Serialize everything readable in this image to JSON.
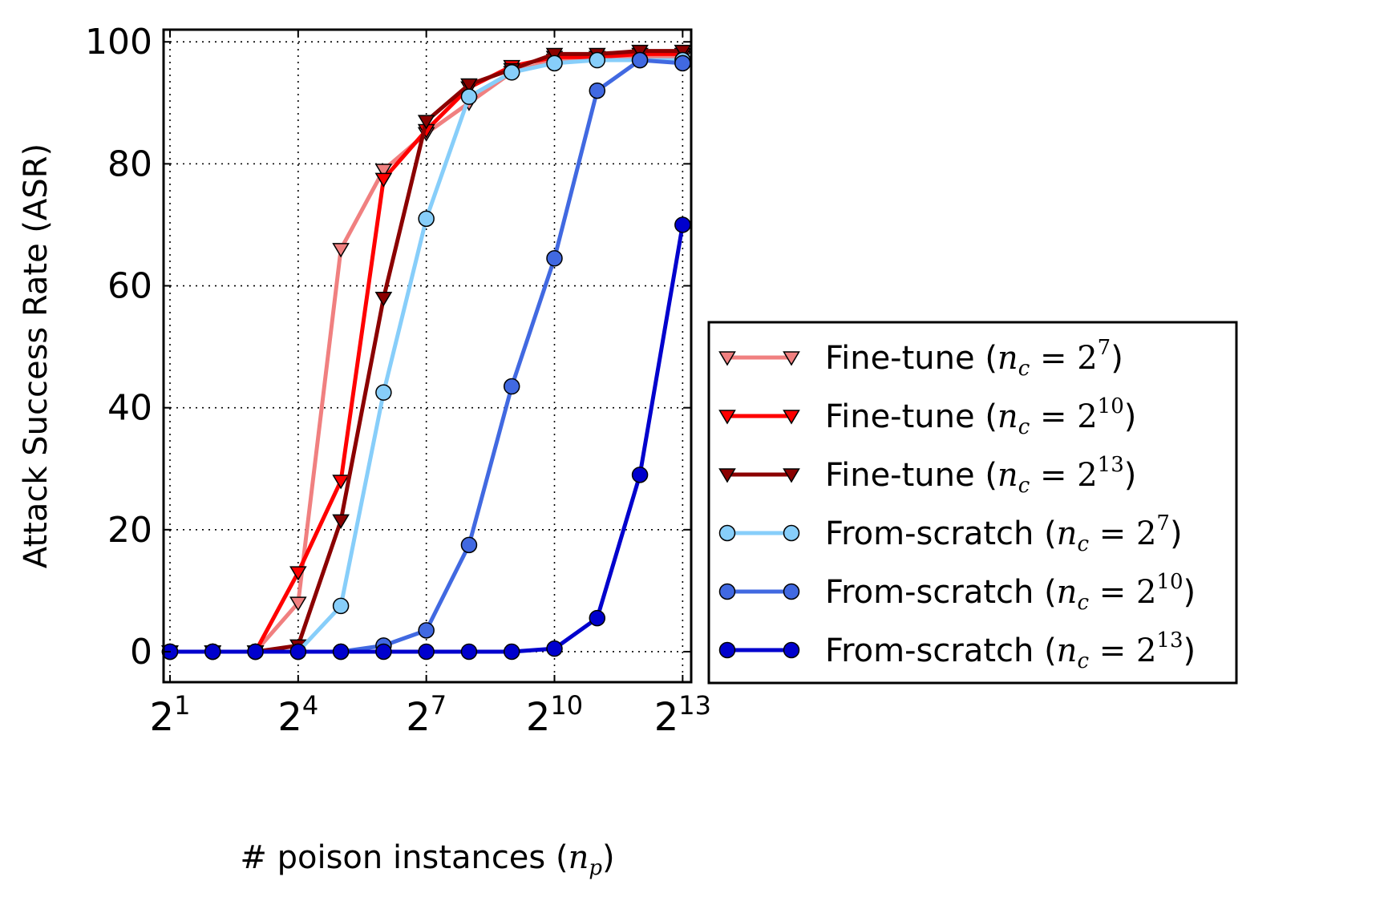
{
  "chart_data": {
    "type": "line",
    "title": "",
    "xlabel": "# poison instances (n_p)",
    "xlabel_parts": {
      "text": "# poison instances (",
      "var": "n",
      "sub": "p",
      "close": ")"
    },
    "ylabel": "Attack Success Rate (ASR)",
    "x_scale": "log2",
    "x_exponents": [
      1,
      2,
      3,
      4,
      5,
      6,
      7,
      8,
      9,
      10,
      11,
      12,
      13
    ],
    "x_tick_exponents": [
      "1",
      "4",
      "7",
      "10",
      "13"
    ],
    "x_tick_base": "2",
    "xlim_exponent": [
      0.85,
      13.2
    ],
    "ylim": [
      -5,
      102
    ],
    "y_ticks": [
      0,
      20,
      40,
      60,
      80,
      100
    ],
    "y_tick_labels": [
      "0",
      "20",
      "40",
      "60",
      "80",
      "100"
    ],
    "grid": true,
    "legend_position": "right, outside, lower",
    "series": [
      {
        "name": "Fine-tune (n_c = 2^7)",
        "label_main": "Fine-tune",
        "nc_exp": "7",
        "color": "#f08080",
        "marker": "triangle-down",
        "values": [
          0,
          0,
          0,
          8,
          66,
          79,
          85,
          90,
          95,
          97,
          97.5,
          97.5,
          97.5
        ]
      },
      {
        "name": "Fine-tune (n_c = 2^10)",
        "label_main": "Fine-tune",
        "nc_exp": "10",
        "color": "#ff0000",
        "marker": "triangle-down",
        "values": [
          0,
          0,
          0,
          13,
          28,
          77.5,
          85.5,
          92.5,
          96,
          97.5,
          97.5,
          98,
          98
        ]
      },
      {
        "name": "Fine-tune (n_c = 2^13)",
        "label_main": "Fine-tune",
        "nc_exp": "13",
        "color": "#8b0000",
        "marker": "triangle-down",
        "values": [
          0,
          0,
          0,
          1,
          21.5,
          58,
          87,
          93,
          95.5,
          98,
          98,
          98.5,
          98.5
        ]
      },
      {
        "name": "From-scratch (n_c = 2^7)",
        "label_main": "From-scratch",
        "nc_exp": "7",
        "color": "#87cefa",
        "marker": "circle",
        "values": [
          0,
          0,
          0,
          0,
          7.5,
          42.5,
          71,
          91,
          95,
          96.5,
          97,
          97,
          97
        ]
      },
      {
        "name": "From-scratch (n_c = 2^10)",
        "label_main": "From-scratch",
        "nc_exp": "10",
        "color": "#4169e1",
        "marker": "circle",
        "values": [
          0,
          0,
          0,
          0,
          0,
          1,
          3.5,
          17.5,
          43.5,
          64.5,
          92,
          97,
          96.5
        ]
      },
      {
        "name": "From-scratch (n_c = 2^13)",
        "label_main": "From-scratch",
        "nc_exp": "13",
        "color": "#0000cd",
        "marker": "circle",
        "values": [
          0,
          0,
          0,
          0,
          0,
          0,
          0,
          0,
          0,
          0.5,
          5.5,
          29,
          70
        ]
      }
    ]
  }
}
